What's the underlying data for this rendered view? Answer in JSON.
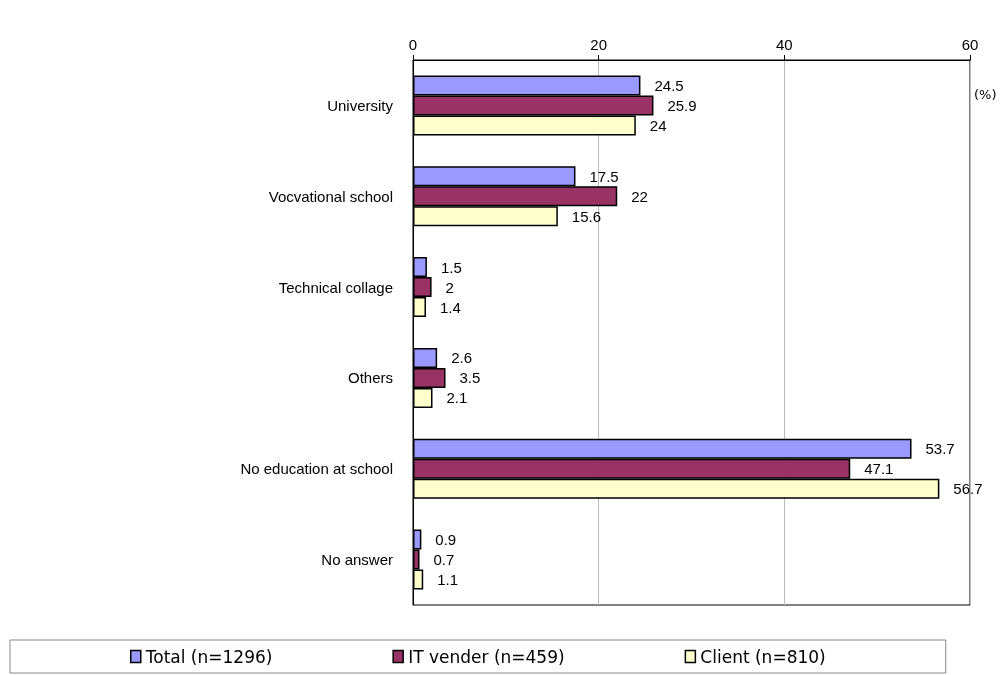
{
  "chart_data": {
    "type": "bar",
    "orientation": "horizontal",
    "xlabel": "(%)",
    "categories": [
      "University",
      "Vocvational school",
      "Technical collage",
      "Others",
      "No education at school",
      "No answer"
    ],
    "series": [
      {
        "name": "Total (n=1296)",
        "color": "#9999ff",
        "values": [
          24.5,
          17.5,
          1.5,
          2.6,
          53.7,
          0.9
        ]
      },
      {
        "name": "IT vender (n=459)",
        "color": "#993366",
        "values": [
          25.9,
          22,
          2,
          3.5,
          47.1,
          0.7
        ]
      },
      {
        "name": "Client (n=810)",
        "color": "#ffffcc",
        "values": [
          24,
          15.6,
          1.4,
          2.1,
          56.7,
          1.1
        ]
      }
    ],
    "xlim": [
      0,
      60
    ],
    "xticks": [
      0,
      20,
      40,
      60
    ],
    "grid": "x",
    "legend": "bottom",
    "data_labels": true
  }
}
